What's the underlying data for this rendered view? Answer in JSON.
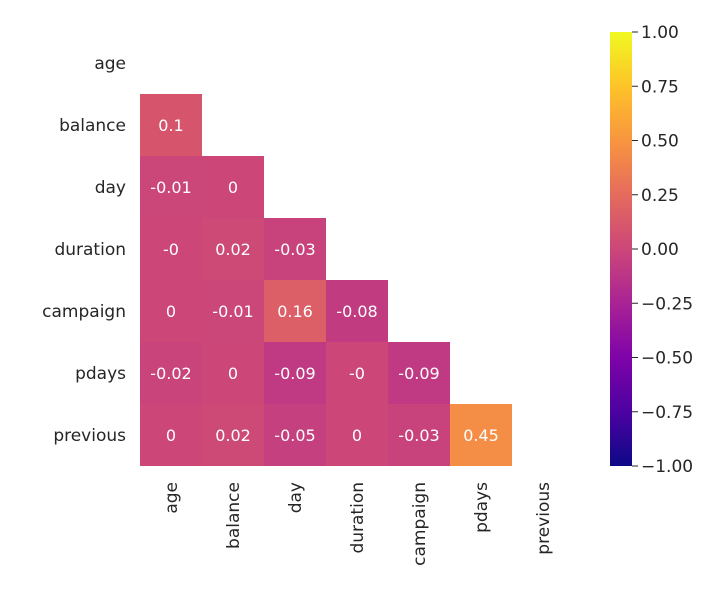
{
  "chart_data": {
    "type": "heatmap",
    "title": "",
    "mask": "upper-triangle-including-diagonal",
    "colormap": "plasma",
    "variables": [
      "age",
      "balance",
      "day",
      "duration",
      "campaign",
      "pdays",
      "previous"
    ],
    "matrix": [
      [
        null,
        null,
        null,
        null,
        null,
        null,
        null
      ],
      [
        0.1,
        null,
        null,
        null,
        null,
        null,
        null
      ],
      [
        -0.01,
        0,
        null,
        null,
        null,
        null,
        null
      ],
      [
        -0.0,
        0.02,
        -0.03,
        null,
        null,
        null,
        null
      ],
      [
        0,
        -0.01,
        0.16,
        -0.08,
        null,
        null,
        null
      ],
      [
        -0.02,
        0,
        -0.09,
        -0.0,
        -0.09,
        null,
        null
      ],
      [
        0,
        0.02,
        -0.05,
        0,
        -0.03,
        0.45,
        null
      ]
    ],
    "annotations": [
      [
        "",
        "",
        "",
        "",
        "",
        "",
        ""
      ],
      [
        "0.1",
        "",
        "",
        "",
        "",
        "",
        ""
      ],
      [
        "-0.01",
        "0",
        "",
        "",
        "",
        "",
        ""
      ],
      [
        "-0",
        "0.02",
        "-0.03",
        "",
        "",
        "",
        ""
      ],
      [
        "0",
        "-0.01",
        "0.16",
        "-0.08",
        "",
        "",
        ""
      ],
      [
        "-0.02",
        "0",
        "-0.09",
        "-0",
        "-0.09",
        "",
        ""
      ],
      [
        "0",
        "0.02",
        "-0.05",
        "0",
        "-0.03",
        "0.45",
        ""
      ]
    ],
    "colorbar": {
      "vmin": -1.0,
      "vmax": 1.0,
      "ticks": [
        1.0,
        0.75,
        0.5,
        0.25,
        0.0,
        -0.25,
        -0.5,
        -0.75,
        -1.0
      ],
      "tick_labels": [
        "1.00",
        "0.75",
        "0.50",
        "0.25",
        "0.00",
        "−0.25",
        "−0.50",
        "−0.75",
        "−1.00"
      ]
    }
  }
}
